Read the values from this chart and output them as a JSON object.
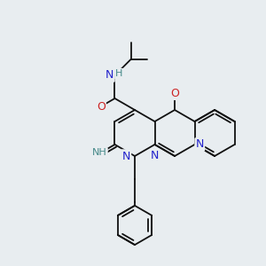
{
  "bg_color": "#e8edf0",
  "bond_color": "#111111",
  "N_color": "#2222cc",
  "O_color": "#cc2222",
  "NH_color": "#448888",
  "figsize": [
    3.0,
    3.0
  ],
  "dpi": 100,
  "bl": 26
}
